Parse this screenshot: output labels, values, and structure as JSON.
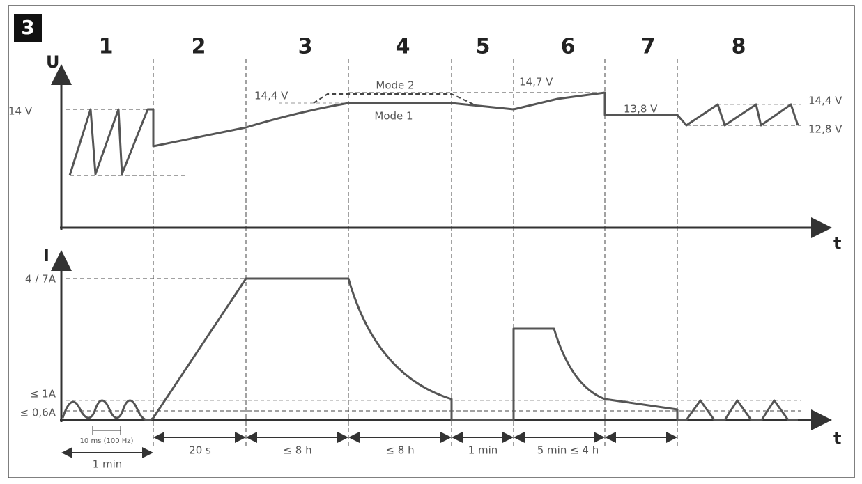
{
  "badge": "3",
  "stages": [
    "1",
    "2",
    "3",
    "4",
    "5",
    "6",
    "7",
    "8"
  ],
  "upper": {
    "axis_y": "U",
    "axis_x": "t",
    "labels": {
      "v14": "14 V",
      "v144_left": "14,4 V",
      "mode2": "Mode 2",
      "mode1": "Mode 1",
      "v147": "14,7 V",
      "v138": "13,8 V",
      "v144_right": "14,4 V",
      "v128": "12,8 V"
    }
  },
  "lower": {
    "axis_y": "I",
    "axis_x": "t",
    "labels": {
      "a47": "4 / 7A",
      "a1": "≤ 1A",
      "a06": "≤ 0,6A"
    }
  },
  "pulse": "10 ms (100 Hz)",
  "first_duration": "1 min",
  "durations": [
    "20 s",
    "≤ 8 h",
    "≤ 8 h",
    "1 min",
    "5 min ≤ 4 h"
  ]
}
